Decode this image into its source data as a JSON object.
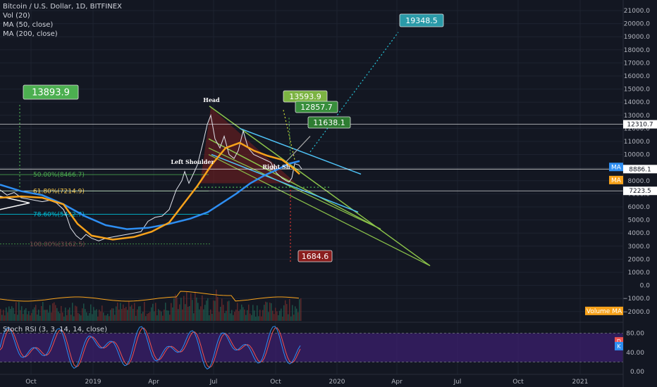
{
  "legend": {
    "title": "Bitcoin / U.S. Dollar, 1D, BITFINEX",
    "vol": "Vol (20)",
    "ma50": "MA (50, close)",
    "ma200": "MA (200, close)"
  },
  "stoch_label": "Stoch RSI (3, 3, 14, 14, close)",
  "colors": {
    "background": "#131722",
    "ma50": "#f7a21b",
    "ma200": "#2e8ef2",
    "price": "#e0e3eb",
    "green_box": "#4caf50",
    "teal_box": "#2a9aa8",
    "red_box": "#7a1f1f",
    "fib_green": "#4caf50",
    "fib_cyan": "#00bcd4",
    "wedge": "#8bc34a",
    "channel": "#4fc3f7",
    "stoch_bg": "#3b1f6e"
  },
  "chart_data": {
    "type": "line",
    "price_axis": {
      "min": -2000,
      "max": 21000,
      "ticks": [
        21000,
        20000,
        19000,
        18000,
        17000,
        16000,
        15000,
        14000,
        13000,
        12000,
        11000,
        10000,
        9000,
        8000,
        7000,
        6000,
        5000,
        4000,
        3000,
        2000,
        1000,
        0,
        -1000,
        -2000
      ],
      "tick_labels": [
        "21000.0",
        "20000.0",
        "19000.0",
        "18000.0",
        "17000.0",
        "16000.0",
        "15000.0",
        "14000.0",
        "13000.0",
        "12000.0",
        "11000.0",
        "10000.0",
        "9000.0",
        "8000.0",
        "7000.0",
        "6000.0",
        "5000.0",
        "4000.0",
        "3000.0",
        "2000.0",
        "1000.0",
        "0.0",
        "−1000.0",
        "−2000.0"
      ]
    },
    "stoch_axis": {
      "ticks": [
        80,
        40,
        0
      ],
      "tick_labels": [
        "80.00",
        "40.00",
        "0.00"
      ]
    },
    "time_axis": {
      "labels": [
        {
          "x": 44,
          "text": "Oct"
        },
        {
          "x": 132,
          "text": "2019"
        },
        {
          "x": 218,
          "text": "Apr"
        },
        {
          "x": 303,
          "text": "Jul"
        },
        {
          "x": 391,
          "text": "Oct"
        },
        {
          "x": 478,
          "text": "2020"
        },
        {
          "x": 563,
          "text": "Apr"
        },
        {
          "x": 649,
          "text": "Jul"
        },
        {
          "x": 735,
          "text": "Oct"
        },
        {
          "x": 823,
          "text": "2021"
        }
      ]
    },
    "price_badges": [
      {
        "label": "12310.7",
        "value": 12310.7,
        "kind": "white"
      },
      {
        "label": "8886.1",
        "value": 8886.1,
        "kind": "white"
      },
      {
        "label": "7223.5",
        "value": 7223.5,
        "kind": "white"
      },
      {
        "label": "MA",
        "value": 9050,
        "kind": "blue"
      },
      {
        "label": "MA",
        "value": 8050,
        "kind": "orange"
      },
      {
        "label": "Volume MA",
        "value": -1950,
        "kind": "orange"
      }
    ],
    "stoch_badges": [
      {
        "label": "D",
        "value": 63,
        "kind": "red"
      },
      {
        "label": "K",
        "value": 53,
        "kind": "blue"
      }
    ],
    "annotations": [
      {
        "label": "13893.9",
        "kind": "green",
        "value": 13893.9
      },
      {
        "label": "19348.5",
        "kind": "teal",
        "value": 19348.5
      },
      {
        "label": "13593.9",
        "kind": "lightgreen",
        "value": 13593.9
      },
      {
        "label": "12857.7",
        "kind": "green",
        "value": 12857.7
      },
      {
        "label": "11638.1",
        "kind": "green",
        "value": 11638.1
      },
      {
        "label": "1684.6",
        "kind": "red",
        "value": 1684.6
      }
    ],
    "pattern_labels": [
      "Head",
      "Left Shoulder",
      "Right Sh"
    ],
    "fib_labels": [
      {
        "label": "50.00%(8466.7)",
        "value": 8466.7
      },
      {
        "label": "61.80%(7214.9)",
        "value": 7214.9
      },
      {
        "label": "78.60%(5432.7)",
        "value": 5432.7
      },
      {
        "label": "100.00%(3162.5)",
        "value": 3162.5
      }
    ]
  }
}
